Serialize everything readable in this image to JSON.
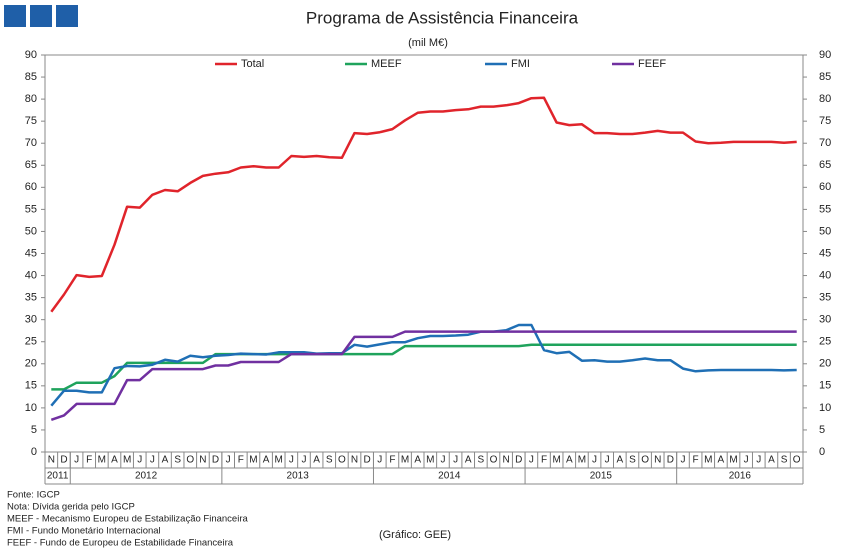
{
  "chart_data": {
    "type": "line",
    "title": "Programa de Assistência Financeira",
    "subtitle": "(mil M€)",
    "source": "(Gráfico: GEE)",
    "notes": [
      "Fonte: IGCP",
      "Nota: Dívida gerida pelo IGCP",
      "MEEF - Mecanismo Europeu de Estabilização Financeira",
      "FMI - Fundo Monetário Internacional",
      "FEEF - Fundo de Europeu de Estabilidade Financeira"
    ],
    "years": [
      {
        "label": "2011",
        "months": [
          "N",
          "D"
        ]
      },
      {
        "label": "2012",
        "months": [
          "J",
          "F",
          "M",
          "A",
          "M",
          "J",
          "J",
          "A",
          "S",
          "O",
          "N",
          "D"
        ]
      },
      {
        "label": "2013",
        "months": [
          "J",
          "F",
          "M",
          "A",
          "M",
          "J",
          "J",
          "A",
          "S",
          "O",
          "N",
          "D"
        ]
      },
      {
        "label": "2014",
        "months": [
          "J",
          "F",
          "M",
          "A",
          "M",
          "J",
          "J",
          "A",
          "S",
          "O",
          "N",
          "D"
        ]
      },
      {
        "label": "2015",
        "months": [
          "J",
          "F",
          "M",
          "A",
          "M",
          "J",
          "J",
          "A",
          "S",
          "O",
          "N",
          "D"
        ]
      },
      {
        "label": "2016",
        "months": [
          "J",
          "F",
          "M",
          "A",
          "M",
          "J",
          "J",
          "A",
          "S",
          "O"
        ]
      }
    ],
    "ylim": [
      0,
      90
    ],
    "yticks": [
      0,
      5,
      10,
      15,
      20,
      25,
      30,
      35,
      40,
      45,
      50,
      55,
      60,
      65,
      70,
      75,
      80,
      85,
      90
    ],
    "y2lim": [
      0,
      90
    ],
    "y2ticks": [
      0,
      5,
      10,
      15,
      20,
      25,
      30,
      35,
      40,
      45,
      50,
      55,
      60,
      65,
      70,
      75,
      80,
      85,
      90
    ],
    "series": [
      {
        "name": "Total",
        "color": "#e0242b",
        "values": [
          31.8,
          35.7,
          40.1,
          39.7,
          39.9,
          47,
          55.6,
          55.4,
          58.3,
          59.4,
          59.1,
          61,
          62.6,
          63.1,
          63.4,
          64.5,
          64.8,
          64.5,
          64.5,
          67.1,
          66.9,
          67.1,
          66.8,
          66.7,
          72.3,
          72.1,
          72.5,
          73.2,
          75.2,
          76.9,
          77.2,
          77.2,
          77.5,
          77.7,
          78.3,
          78.3,
          78.6,
          79.1,
          80.2,
          80.3,
          74.7,
          74.1,
          74.3,
          72.3,
          72.3,
          72.1,
          72.1,
          72.4,
          72.8,
          72.4,
          72.4,
          70.4,
          70,
          70.1,
          70.3,
          70.3,
          70.3,
          70.3,
          70.1,
          70.3
        ]
      },
      {
        "name": "MEEF",
        "color": "#1fa35c",
        "values": [
          14.2,
          14.2,
          15.7,
          15.7,
          15.7,
          17.2,
          20.2,
          20.2,
          20.2,
          20.2,
          20.2,
          20.2,
          20.2,
          22.2,
          22.2,
          22.2,
          22.2,
          22.2,
          22.2,
          22.2,
          22.2,
          22.2,
          22.2,
          22.2,
          22.2,
          22.2,
          22.2,
          22.2,
          24.0,
          24.0,
          24.0,
          24.0,
          24.0,
          24.0,
          24.0,
          24.0,
          24.0,
          24.0,
          24.3,
          24.3,
          24.3,
          24.3,
          24.3,
          24.3,
          24.3,
          24.3,
          24.3,
          24.3,
          24.3,
          24.3,
          24.3,
          24.3,
          24.3,
          24.3,
          24.3,
          24.3,
          24.3,
          24.3,
          24.3,
          24.3
        ]
      },
      {
        "name": "FMI",
        "color": "#1f6fb5",
        "values": [
          10.5,
          13.9,
          13.9,
          13.5,
          13.5,
          19,
          19.5,
          19.4,
          19.8,
          20.9,
          20.5,
          21.8,
          21.5,
          21.8,
          22.0,
          22.3,
          22.2,
          22.1,
          22.6,
          22.6,
          22.6,
          22.3,
          22.4,
          22.4,
          24.3,
          23.9,
          24.4,
          24.9,
          24.9,
          25.8,
          26.3,
          26.3,
          26.4,
          26.6,
          27.3,
          27.3,
          27.6,
          28.8,
          28.8,
          23.1,
          22.4,
          22.7,
          20.7,
          20.8,
          20.5,
          20.5,
          20.8,
          21.2,
          20.8,
          20.8,
          18.9,
          18.3,
          18.5,
          18.6,
          18.6,
          18.6,
          18.6,
          18.6,
          18.5,
          18.6
        ]
      },
      {
        "name": "FEEF",
        "color": "#7030a0",
        "values": [
          7.3,
          8.3,
          10.9,
          10.9,
          10.9,
          10.9,
          16.3,
          16.3,
          18.8,
          18.8,
          18.8,
          18.8,
          18.8,
          19.6,
          19.6,
          20.4,
          20.4,
          20.4,
          20.4,
          22.2,
          22.2,
          22.2,
          22.2,
          22.2,
          26.1,
          26.1,
          26.1,
          26.1,
          27.3,
          27.3,
          27.3,
          27.3,
          27.3,
          27.3,
          27.3,
          27.3,
          27.3,
          27.3,
          27.3,
          27.3,
          27.3,
          27.3,
          27.3,
          27.3,
          27.3,
          27.3,
          27.3,
          27.3,
          27.3,
          27.3,
          27.3,
          27.3,
          27.3,
          27.3,
          27.3,
          27.3,
          27.3,
          27.3,
          27.3,
          27.3
        ]
      }
    ]
  }
}
